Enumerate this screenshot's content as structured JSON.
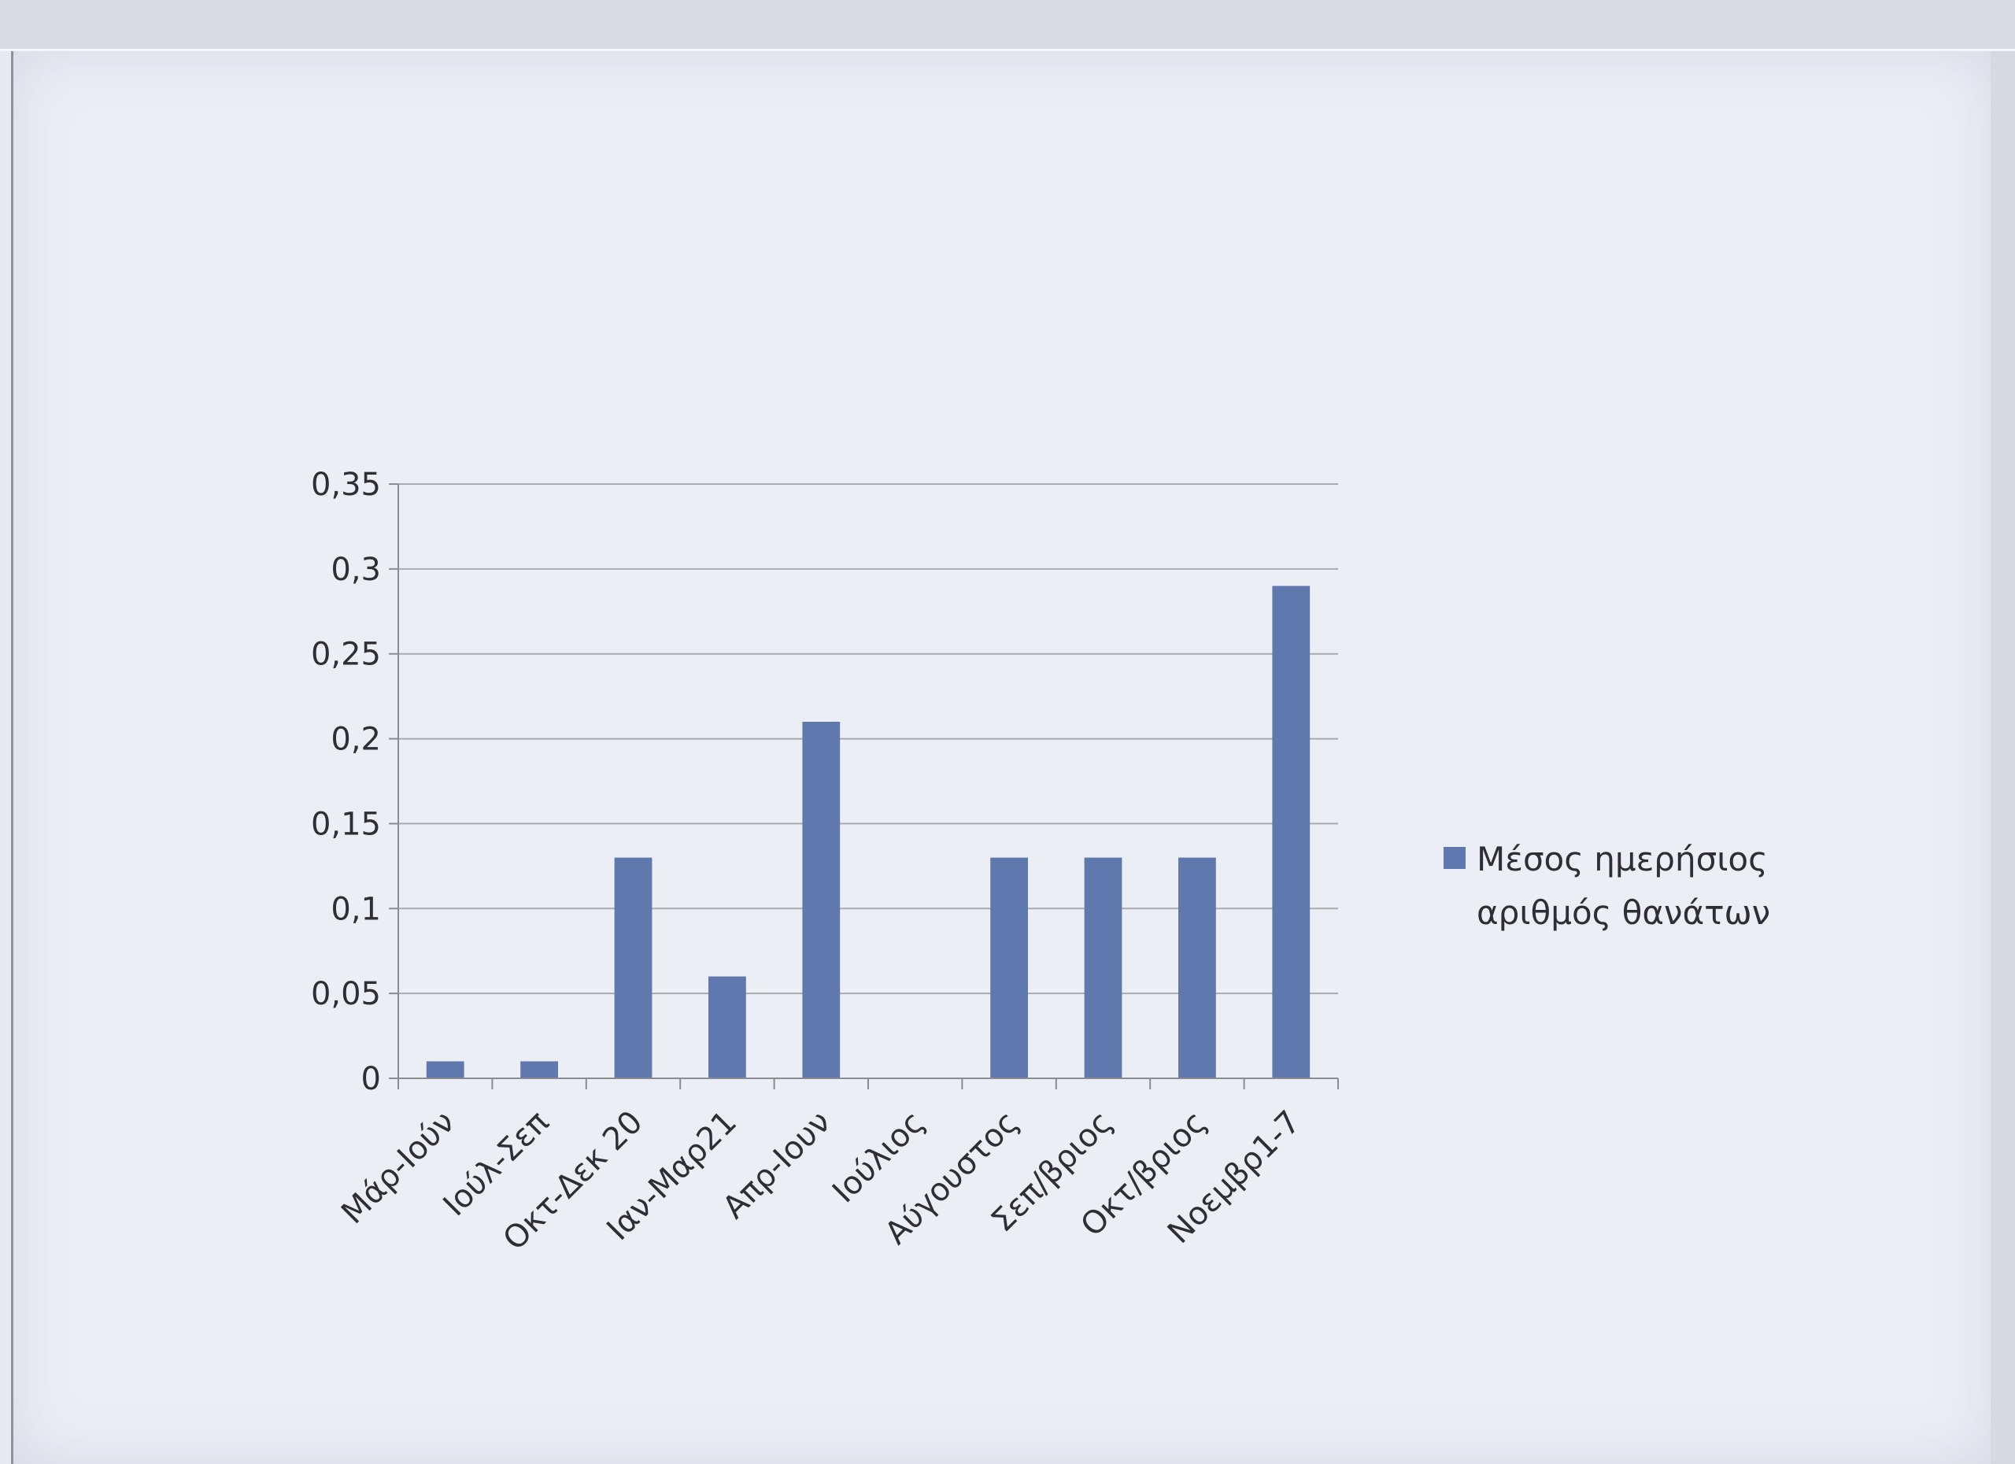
{
  "colors": {
    "bar": "#5f78ad",
    "grid": "#a9abb1",
    "axis": "#8a8c92",
    "text": "#2e2e33"
  },
  "chart_data": {
    "type": "bar",
    "categories": [
      "Μάρ-Ιούν",
      "Ιούλ-Σεπ",
      "Οκτ-Δεκ 20",
      "Ιαν-Μαρ21",
      "Απρ-Ιουν",
      "Ιούλιος",
      "Αύγουστος",
      "Σεπ/βριος",
      "Οκτ/βριος",
      "Νοεμβρ1-7"
    ],
    "series": [
      {
        "name": "Μέσος ημερήσιος αριθμός θανάτων",
        "values": [
          0.01,
          0.01,
          0.13,
          0.06,
          0.21,
          0,
          0.13,
          0.13,
          0.13,
          0.29
        ]
      }
    ],
    "yticks": [
      "0",
      "0,05",
      "0,1",
      "0,15",
      "0,2",
      "0,25",
      "0,3",
      "0,35"
    ],
    "ylim": [
      0,
      0.35
    ],
    "grid": true,
    "legend_position": "right",
    "legend": {
      "lines": [
        "Μέσος ημερήσιος",
        "αριθμός θανάτων"
      ]
    }
  }
}
